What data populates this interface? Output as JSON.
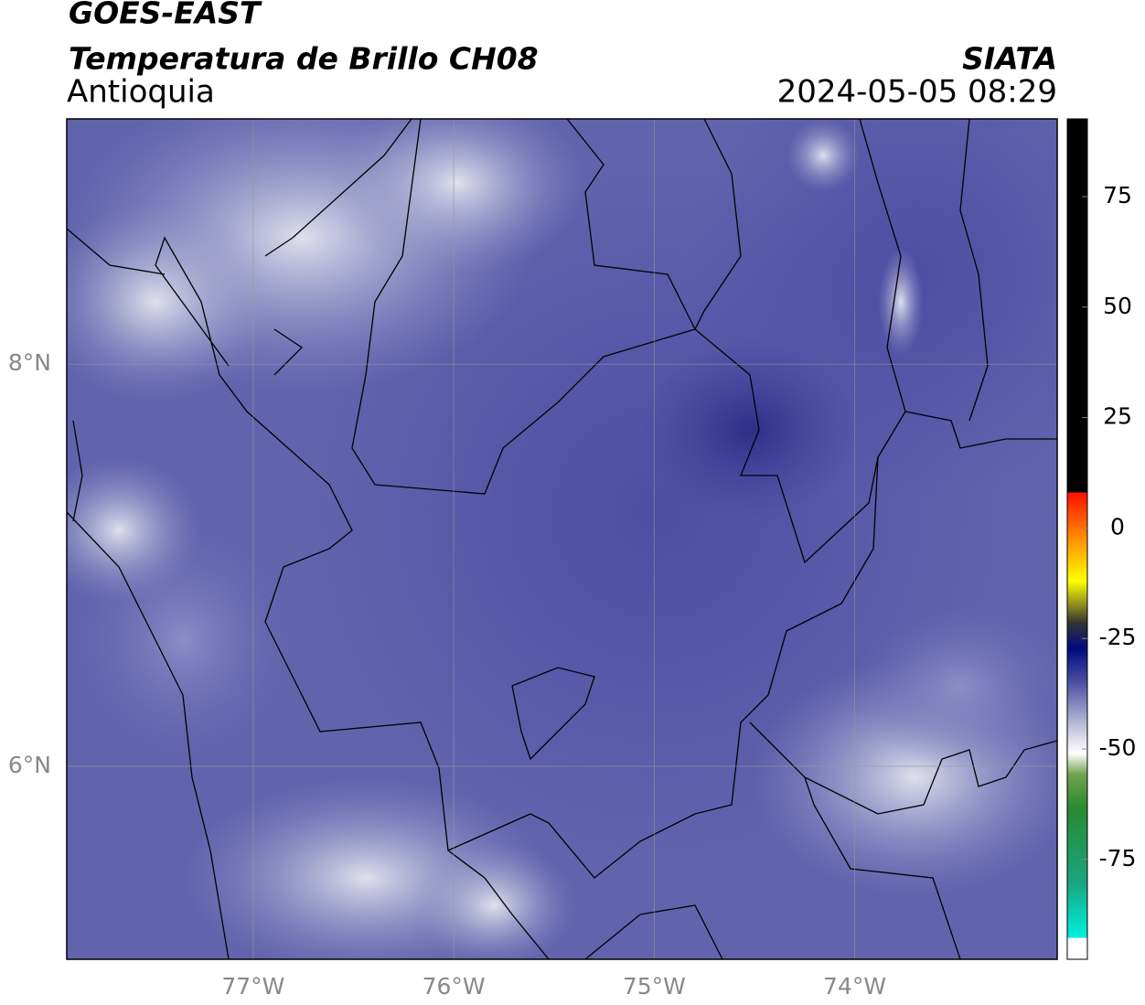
{
  "header": {
    "satellite": "GOES-EAST",
    "product": "Temperatura de Brillo CH08",
    "region": "Antioquia",
    "source": "SIATA",
    "datetime": "2024-05-05 08:29"
  },
  "map": {
    "lonlim": [
      -77.93,
      -72.99
    ],
    "latlim": [
      5.04,
      9.22
    ],
    "xticks": [
      {
        "value": -77,
        "label": "77°W"
      },
      {
        "value": -76,
        "label": "76°W"
      },
      {
        "value": -75,
        "label": "75°W"
      },
      {
        "value": -74,
        "label": "74°W"
      }
    ],
    "yticks": [
      {
        "value": 8,
        "label": "8°N"
      },
      {
        "value": 6,
        "label": "6°N"
      }
    ],
    "grid": true
  },
  "colorbar": {
    "lim": [
      -97.6,
      92.6
    ],
    "ticks": [
      75,
      50,
      25,
      0,
      -25,
      -50,
      -75
    ]
  }
}
